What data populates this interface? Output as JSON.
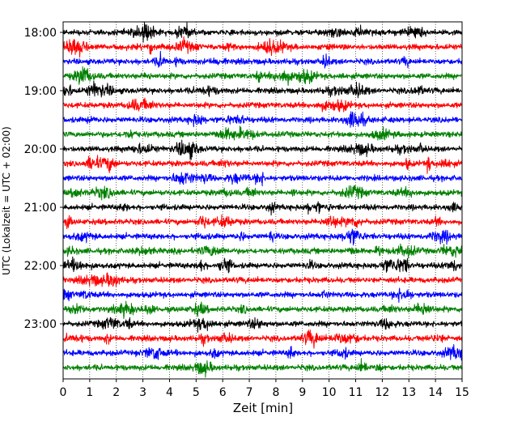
{
  "chart_data": {
    "type": "line",
    "title": "",
    "xlabel": "Zeit  [min]",
    "ylabel": "UTC (Lokalzeit = UTC + 02:00)",
    "xlim": [
      0,
      15
    ],
    "x_ticks": [
      "0",
      "1",
      "2",
      "3",
      "4",
      "5",
      "6",
      "7",
      "8",
      "9",
      "10",
      "11",
      "12",
      "13",
      "14",
      "15"
    ],
    "y_tick_labels": [
      "18:00",
      "19:00",
      "20:00",
      "21:00",
      "22:00",
      "23:00"
    ],
    "grid": "vertical dotted lines at each minute",
    "trace_colors": [
      "#000000",
      "#ff0000",
      "#0000ff",
      "#008000"
    ],
    "trace_start_times": [
      "18:00",
      "18:15",
      "18:30",
      "18:45",
      "19:00",
      "19:15",
      "19:30",
      "19:45",
      "20:00",
      "20:15",
      "20:30",
      "20:45",
      "21:00",
      "21:15",
      "21:30",
      "21:45",
      "22:00",
      "22:15",
      "22:30",
      "22:45",
      "23:00",
      "23:15",
      "23:30",
      "23:45"
    ]
  }
}
